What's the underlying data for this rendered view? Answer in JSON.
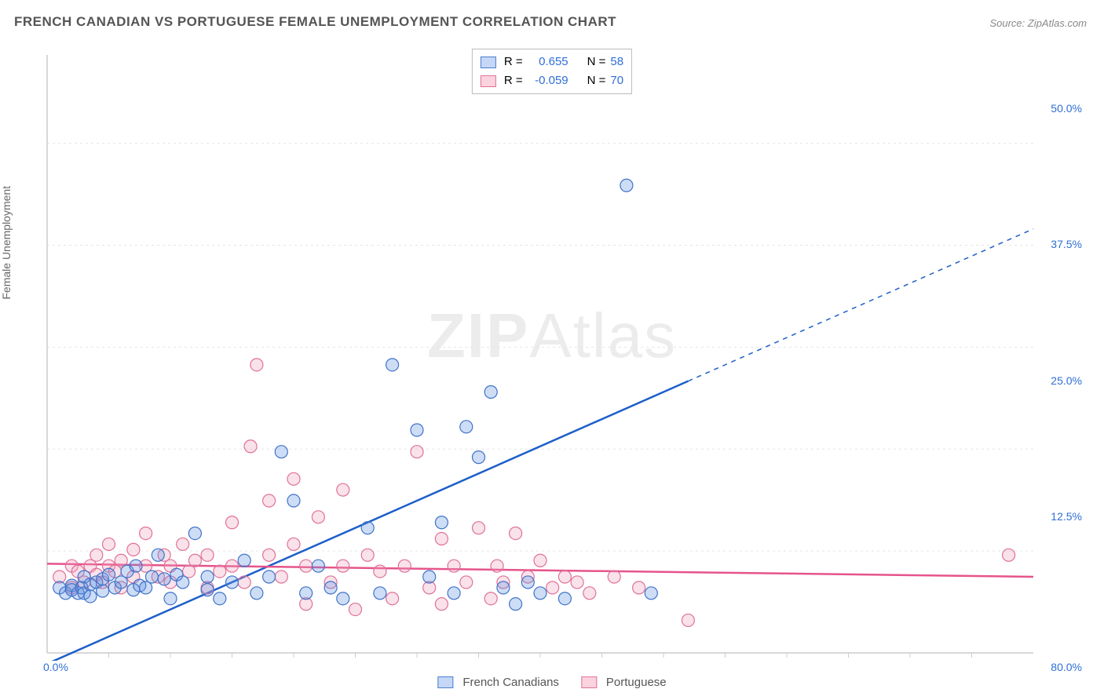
{
  "title": "FRENCH CANADIAN VS PORTUGUESE FEMALE UNEMPLOYMENT CORRELATION CHART",
  "source": "Source: ZipAtlas.com",
  "ylabel": "Female Unemployment",
  "watermark": {
    "bold": "ZIP",
    "rest": "Atlas"
  },
  "legend_top": {
    "rows": [
      {
        "swatch": "blue",
        "r_label": "R =",
        "r_value": "0.655",
        "n_label": "N =",
        "n_value": "58"
      },
      {
        "swatch": "pink",
        "r_label": "R =",
        "r_value": "-0.059",
        "n_label": "N =",
        "n_value": "70"
      }
    ]
  },
  "bottom_legend": {
    "items": [
      {
        "swatch": "blue",
        "label": "French Canadians"
      },
      {
        "swatch": "pink",
        "label": "Portuguese"
      }
    ]
  },
  "chart": {
    "type": "scatter",
    "background_color": "#ffffff",
    "grid_color": "#e5e5e5",
    "axis_color": "#cccccc",
    "xlim": [
      0,
      80
    ],
    "ylim": [
      0,
      55
    ],
    "xtick_labels": [
      {
        "value": 0,
        "label": "0.0%"
      },
      {
        "value": 80,
        "label": "80.0%"
      }
    ],
    "ytick_labels": [
      {
        "value": 12.5,
        "label": "12.5%"
      },
      {
        "value": 25.0,
        "label": "25.0%"
      },
      {
        "value": 37.5,
        "label": "37.5%"
      },
      {
        "value": 50.0,
        "label": "50.0%"
      }
    ],
    "x_minor_ticks": [
      5,
      10,
      15,
      20,
      25,
      30,
      35,
      40,
      45,
      50,
      55,
      60,
      65,
      70,
      75
    ],
    "y_gridlines": [
      9.375,
      18.75,
      28.125,
      37.5,
      46.875
    ],
    "marker_radius": 8,
    "marker_stroke_width": 1.2,
    "marker_fill_opacity": 0.3,
    "series": {
      "french_canadians": {
        "color": "#5c8fe0",
        "stroke": "#3f73c9",
        "points": [
          [
            1,
            6
          ],
          [
            1.5,
            5.5
          ],
          [
            2,
            6.2
          ],
          [
            2,
            5.8
          ],
          [
            2.5,
            5.5
          ],
          [
            2.8,
            6
          ],
          [
            3,
            7
          ],
          [
            3,
            5.5
          ],
          [
            3.5,
            6.3
          ],
          [
            3.5,
            5.2
          ],
          [
            4,
            6.5
          ],
          [
            4.5,
            5.7
          ],
          [
            4.5,
            6.8
          ],
          [
            5,
            7.2
          ],
          [
            5.5,
            6
          ],
          [
            6,
            6.5
          ],
          [
            6.5,
            7.5
          ],
          [
            7,
            5.8
          ],
          [
            7.2,
            8
          ],
          [
            7.5,
            6.2
          ],
          [
            8,
            6
          ],
          [
            8.5,
            7
          ],
          [
            9,
            9
          ],
          [
            9.5,
            6.8
          ],
          [
            10,
            5
          ],
          [
            10.5,
            7.2
          ],
          [
            11,
            6.5
          ],
          [
            12,
            11
          ],
          [
            13,
            5.8
          ],
          [
            13,
            7
          ],
          [
            14,
            5
          ],
          [
            15,
            6.5
          ],
          [
            16,
            8.5
          ],
          [
            17,
            5.5
          ],
          [
            18,
            7
          ],
          [
            19,
            18.5
          ],
          [
            20,
            14
          ],
          [
            21,
            5.5
          ],
          [
            22,
            8
          ],
          [
            23,
            6
          ],
          [
            24,
            5
          ],
          [
            26,
            11.5
          ],
          [
            27,
            5.5
          ],
          [
            28,
            26.5
          ],
          [
            30,
            20.5
          ],
          [
            31,
            7
          ],
          [
            32,
            12
          ],
          [
            33,
            5.5
          ],
          [
            34,
            20.8
          ],
          [
            35,
            18
          ],
          [
            36,
            24
          ],
          [
            37,
            6
          ],
          [
            38,
            4.5
          ],
          [
            39,
            6.5
          ],
          [
            40,
            5.5
          ],
          [
            42,
            5
          ],
          [
            47,
            43
          ],
          [
            49,
            5.5
          ]
        ],
        "trend": {
          "x1": 0,
          "y1": -1,
          "x2": 52,
          "y2": 25,
          "x2_dash": 80,
          "y2_dash": 39
        }
      },
      "portuguese": {
        "color": "#f0a0b8",
        "stroke": "#e07099",
        "points": [
          [
            1,
            7
          ],
          [
            2,
            8
          ],
          [
            2,
            6
          ],
          [
            2.5,
            7.5
          ],
          [
            3,
            6.5
          ],
          [
            3.5,
            8
          ],
          [
            4,
            7.2
          ],
          [
            4,
            9
          ],
          [
            4.5,
            6.5
          ],
          [
            5,
            8
          ],
          [
            5,
            10
          ],
          [
            5.5,
            7.5
          ],
          [
            6,
            8.5
          ],
          [
            6,
            6
          ],
          [
            7,
            9.5
          ],
          [
            7,
            7
          ],
          [
            8,
            8
          ],
          [
            8,
            11
          ],
          [
            9,
            7
          ],
          [
            9.5,
            9
          ],
          [
            10,
            8
          ],
          [
            10,
            6.5
          ],
          [
            11,
            10
          ],
          [
            11.5,
            7.5
          ],
          [
            12,
            8.5
          ],
          [
            13,
            9
          ],
          [
            13,
            6
          ],
          [
            14,
            7.5
          ],
          [
            15,
            8
          ],
          [
            15,
            12
          ],
          [
            16,
            6.5
          ],
          [
            16.5,
            19
          ],
          [
            17,
            26.5
          ],
          [
            18,
            9
          ],
          [
            18,
            14
          ],
          [
            19,
            7
          ],
          [
            20,
            10
          ],
          [
            20,
            16
          ],
          [
            21,
            8
          ],
          [
            21,
            4.5
          ],
          [
            22,
            12.5
          ],
          [
            23,
            6.5
          ],
          [
            24,
            8
          ],
          [
            24,
            15
          ],
          [
            25,
            4
          ],
          [
            26,
            9
          ],
          [
            27,
            7.5
          ],
          [
            28,
            5
          ],
          [
            29,
            8
          ],
          [
            30,
            18.5
          ],
          [
            31,
            6
          ],
          [
            32,
            10.5
          ],
          [
            32,
            4.5
          ],
          [
            33,
            8
          ],
          [
            34,
            6.5
          ],
          [
            35,
            11.5
          ],
          [
            36,
            5
          ],
          [
            36.5,
            8
          ],
          [
            37,
            6.5
          ],
          [
            38,
            11
          ],
          [
            39,
            7
          ],
          [
            40,
            8.5
          ],
          [
            41,
            6
          ],
          [
            42,
            7
          ],
          [
            43,
            6.5
          ],
          [
            44,
            5.5
          ],
          [
            46,
            7
          ],
          [
            48,
            6
          ],
          [
            52,
            3
          ],
          [
            78,
            9
          ]
        ],
        "trend": {
          "x1": 0,
          "y1": 8.2,
          "x2": 80,
          "y2": 7.0
        }
      }
    }
  }
}
